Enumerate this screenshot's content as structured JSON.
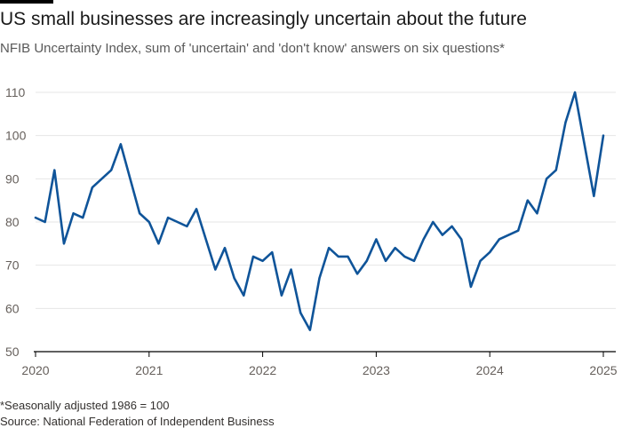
{
  "header": {
    "title": "US small businesses are increasingly uncertain about the future",
    "subtitle": "NFIB Uncertainty Index, sum of 'uncertain' and 'don't know' answers on six questions*"
  },
  "footer": {
    "footnote": "*Seasonally adjusted 1986 = 100",
    "source": "Source: National Federation of Independent Business"
  },
  "colors": {
    "line": "#0f5499",
    "grid": "#e6e6e6",
    "axis": "#000000",
    "topbar": "#000000"
  },
  "chart_data": {
    "type": "line",
    "title": "US small businesses are increasingly uncertain about the future",
    "subtitle": "NFIB Uncertainty Index, sum of 'uncertain' and 'don't know' answers on six questions*",
    "xlabel": "",
    "ylabel": "",
    "ylim": [
      50,
      110
    ],
    "xlim": [
      "2020-01",
      "2025-01"
    ],
    "yticks": [
      50,
      60,
      70,
      80,
      90,
      100,
      110
    ],
    "xticks": [
      "2020",
      "2021",
      "2022",
      "2023",
      "2024",
      "2025"
    ],
    "grid": "horizontal",
    "legend": "none",
    "series": [
      {
        "x": [
          "2020-01",
          "2020-02",
          "2020-03",
          "2020-04",
          "2020-05",
          "2020-06",
          "2020-07",
          "2020-08",
          "2020-09",
          "2020-10",
          "2020-11",
          "2020-12",
          "2021-01",
          "2021-02",
          "2021-03",
          "2021-04",
          "2021-05",
          "2021-06",
          "2021-07",
          "2021-08",
          "2021-09",
          "2021-10",
          "2021-11",
          "2021-12",
          "2022-01",
          "2022-02",
          "2022-03",
          "2022-04",
          "2022-05",
          "2022-06",
          "2022-07",
          "2022-08",
          "2022-09",
          "2022-10",
          "2022-11",
          "2022-12",
          "2023-01",
          "2023-02",
          "2023-03",
          "2023-04",
          "2023-05",
          "2023-06",
          "2023-07",
          "2023-08",
          "2023-09",
          "2023-10",
          "2023-11",
          "2023-12",
          "2024-01",
          "2024-02",
          "2024-03",
          "2024-04",
          "2024-05",
          "2024-06",
          "2024-07",
          "2024-08",
          "2024-09",
          "2024-10",
          "2024-11",
          "2024-12",
          "2025-01"
        ],
        "values": [
          81,
          80,
          92,
          75,
          82,
          81,
          88,
          90,
          92,
          98,
          90,
          82,
          80,
          75,
          81,
          80,
          79,
          83,
          76,
          69,
          74,
          67,
          63,
          72,
          71,
          73,
          63,
          69,
          59,
          55,
          67,
          74,
          72,
          72,
          68,
          71,
          76,
          71,
          74,
          72,
          71,
          76,
          80,
          77,
          79,
          76,
          65,
          71,
          73,
          76,
          77,
          78,
          85,
          82,
          90,
          92,
          103,
          110,
          98,
          86,
          100
        ]
      }
    ]
  }
}
